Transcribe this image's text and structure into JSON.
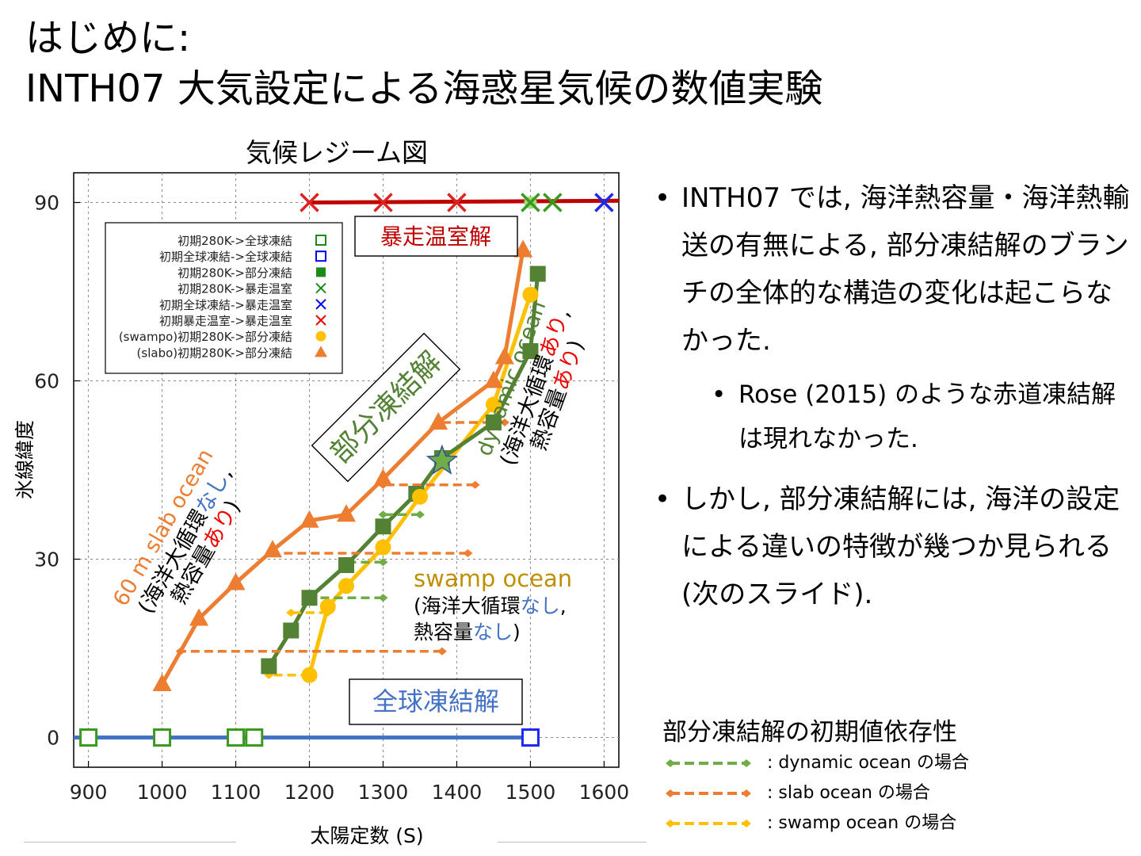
{
  "slide": {
    "title_line1": "はじめに:",
    "title_line2": "INTH07 大気設定による海惑星気候の数値実験",
    "bullets": [
      "INTH07 では, 海洋熱容量・海洋熱輸送の有無による, 部分凍結解のブランチの全体的な構造の変化は起こらなかった.",
      "しかし, 部分凍結解には, 海洋の設定による違いの特徴が幾つか見られる (次のスライド)."
    ],
    "sub_bullet": "Rose (2015) のような赤道凍結解は現れなかった.",
    "legend2": {
      "title": "部分凍結解の初期値依存性",
      "items": [
        {
          "label": ": dynamic ocean の場合",
          "color": "#70ad47"
        },
        {
          "label": ": slab ocean の場合",
          "color": "#ed7d31"
        },
        {
          "label": ": swamp ocean の場合",
          "color": "#ffc000"
        }
      ]
    }
  },
  "colors": {
    "runaway": "#c00000",
    "snowball": "#4472c4",
    "dynamic": "#548235",
    "slab": "#ed7d31",
    "swamp": "#ffc000",
    "green_marker": "#3a9a1e",
    "box_runaway": "#c00000",
    "box_snowball": "#4472c4",
    "box_partial": "#548235"
  },
  "chart_data": {
    "type": "scatter",
    "title": "気候レジーム図",
    "xlabel": "太陽定数 (S)",
    "ylabel": "氷線緯度",
    "xlim": [
      880,
      1620
    ],
    "ylim": [
      -5,
      95
    ],
    "xticks": [
      900,
      1000,
      1100,
      1200,
      1300,
      1400,
      1500,
      1600
    ],
    "yticks": [
      0,
      30,
      60,
      90
    ],
    "grid": true,
    "legend": {
      "placement": "top-left",
      "entries": [
        {
          "label": "初期280K->全球凍結",
          "marker": "open-square",
          "color": "#1a8a1a"
        },
        {
          "label": "初期全球凍結->全球凍結",
          "marker": "open-square",
          "color": "#0000ee"
        },
        {
          "label": "初期280K->部分凍結",
          "marker": "filled-square",
          "color": "#1a8a1a"
        },
        {
          "label": "初期280K->暴走温室",
          "marker": "x",
          "color": "#1a8a1a"
        },
        {
          "label": "初期全球凍結->暴走温室",
          "marker": "x",
          "color": "#0000ee"
        },
        {
          "label": "初期暴走温室->暴走温室",
          "marker": "x",
          "color": "#ee0000"
        },
        {
          "label": "(swampo)初期280K->部分凍結",
          "marker": "circle",
          "color": "#ffc000"
        },
        {
          "label": "(slabo)初期280K->部分凍結",
          "marker": "triangle",
          "color": "#ed7d31"
        }
      ]
    },
    "series": [
      {
        "name": "dynamic",
        "marker": "filled-square",
        "x": [
          1145,
          1175,
          1200,
          1250,
          1300,
          1345,
          1380,
          1450,
          1500,
          1510
        ],
        "y": [
          12,
          18,
          23.5,
          29,
          35.5,
          41,
          47,
          53,
          65,
          78
        ]
      },
      {
        "name": "slab",
        "marker": "triangle",
        "x": [
          1000,
          1050,
          1100,
          1150,
          1200,
          1250,
          1300,
          1375,
          1450,
          1465,
          1490
        ],
        "y": [
          9,
          20,
          26,
          31.5,
          36.5,
          37.5,
          43.5,
          53,
          60,
          64,
          82
        ]
      },
      {
        "name": "swamp",
        "marker": "circle",
        "x": [
          1200,
          1225,
          1250,
          1300,
          1350,
          1450,
          1500
        ],
        "y": [
          10.5,
          22,
          25.5,
          32,
          40.5,
          56,
          74.5
        ]
      },
      {
        "name": "runaway",
        "marker": "x",
        "x": [
          1200,
          1300,
          1400,
          1500,
          1530,
          1600
        ],
        "y": [
          90,
          90,
          90,
          90,
          90,
          90
        ]
      },
      {
        "name": "snowball",
        "marker": "open-square",
        "x": [
          900,
          1000,
          1100,
          1125,
          1500
        ],
        "y": [
          0,
          0,
          0,
          0,
          0
        ]
      }
    ],
    "branch_start": {
      "x": 1380,
      "y": 46.5
    },
    "hysteresis_arrows": [
      {
        "ocean": "dynamic",
        "x0": 1350,
        "x1": 1300,
        "y": 37.5
      },
      {
        "ocean": "dynamic",
        "x0": 1300,
        "x1": 1250,
        "y": 29.5
      },
      {
        "ocean": "dynamic",
        "x0": 1300,
        "x1": 1200,
        "y": 23.5
      },
      {
        "ocean": "slab",
        "x0": 1465,
        "x1": 1375,
        "y": 53
      },
      {
        "ocean": "slab",
        "x0": 1425,
        "x1": 1300,
        "y": 42.5
      },
      {
        "ocean": "slab",
        "x0": 1415,
        "x1": 1150,
        "y": 31
      },
      {
        "ocean": "slab",
        "x0": 1380,
        "x1": 1025,
        "y": 14.5
      },
      {
        "ocean": "swamp",
        "x0": 1225,
        "x1": 1175,
        "y": 21
      },
      {
        "ocean": "swamp",
        "x0": 1200,
        "x1": 1145,
        "y": 10.5
      }
    ],
    "annotations": {
      "runaway_box": "暴走温室解",
      "snowball_box": "全球凍結解",
      "partial_box": "部分凍結解",
      "dynamic_label": {
        "line1": "dynamic ocean",
        "line2a": "(海洋大循環",
        "line2b": "あり",
        "line2c": ",",
        "line3a": "熱容量",
        "line3b": "あり",
        "line3c": ")"
      },
      "slab_label": {
        "line1": "60 m slab ocean",
        "line2a": "(海洋大循環",
        "line2b": "なし",
        "line2c": ",",
        "line3a": "熱容量",
        "line3b": "あり",
        "line3c": ")"
      },
      "swamp_label": {
        "line1": "swamp ocean",
        "line2a": "(海洋大循環",
        "line2b": "なし",
        "line2c": ",",
        "line3a": "熱容量",
        "line3b": "なし",
        "line3c": ")"
      }
    }
  }
}
